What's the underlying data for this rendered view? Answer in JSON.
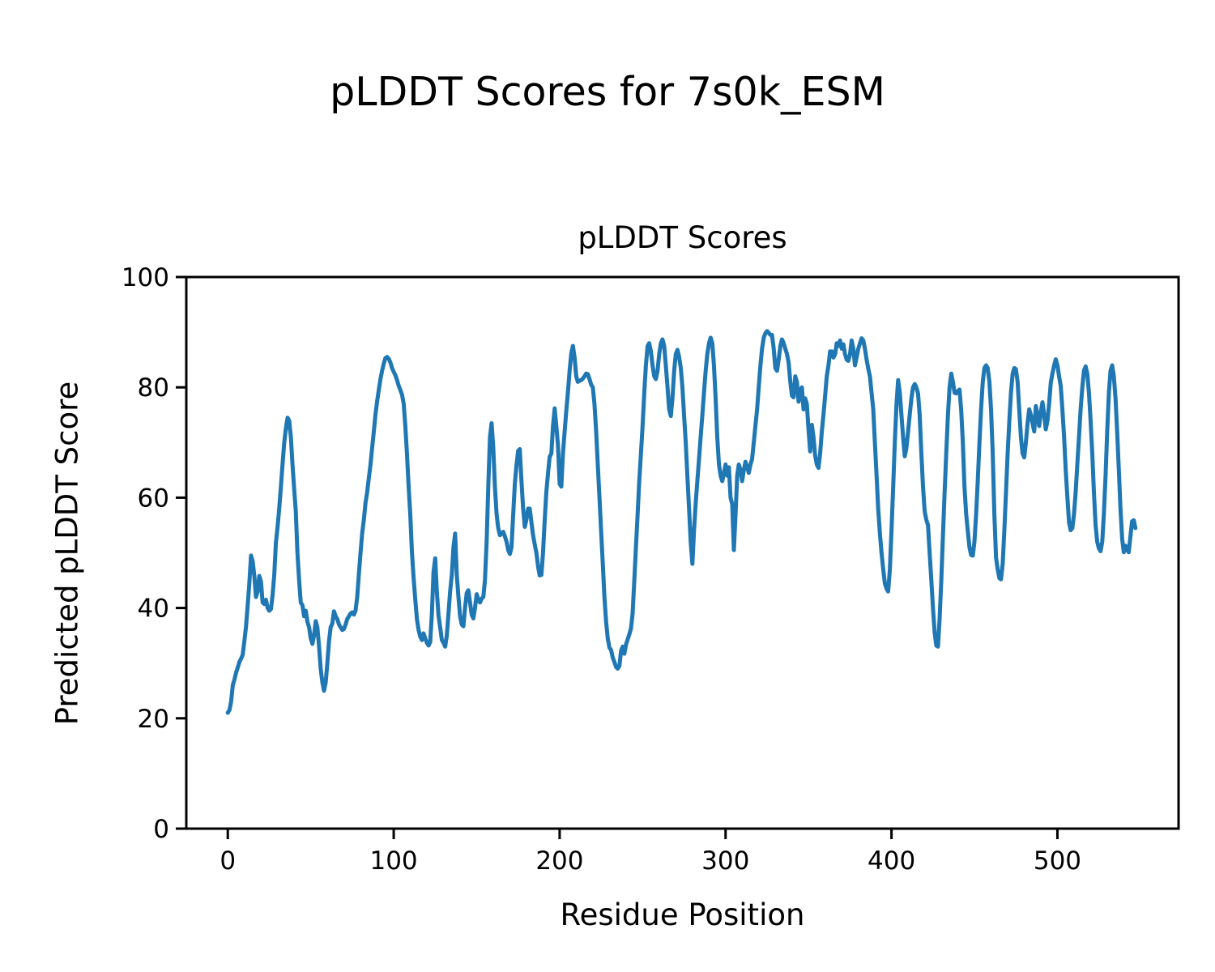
{
  "figure": {
    "suptitle": "pLDDT Scores for 7s0k_ESM",
    "background_color": "#ffffff",
    "text_color": "#000000"
  },
  "chart_data": {
    "type": "line",
    "title": "pLDDT Scores",
    "xlabel": "Residue Position",
    "ylabel": "Predicted pLDDT Score",
    "x_ticks": [
      0,
      100,
      200,
      300,
      400,
      500
    ],
    "y_ticks": [
      0,
      20,
      40,
      60,
      80,
      100
    ],
    "xlim": [
      -25,
      573
    ],
    "ylim": [
      0,
      100
    ],
    "grid": false,
    "legend_position": "none",
    "line_color": "#1f77b4",
    "axis_color": "#000000",
    "series": [
      {
        "name": "pLDDT",
        "x_start": 0,
        "x_step": 1,
        "values": [
          21,
          21.5,
          23,
          26,
          27,
          28.3,
          29.2,
          30.2,
          30.8,
          31.5,
          34,
          36.6,
          40.5,
          44.4,
          49.5,
          48.5,
          45.8,
          42,
          43,
          45.8,
          44.8,
          41,
          40.7,
          41.5,
          40,
          39.5,
          39.8,
          42.3,
          46,
          51.8,
          54.7,
          58,
          62,
          66,
          70,
          72.5,
          74.5,
          74,
          71,
          66,
          61.5,
          57.5,
          50,
          45,
          41,
          40.5,
          38.5,
          39.5,
          37.5,
          36.5,
          34.5,
          33.5,
          35,
          37.6,
          36.5,
          33,
          29,
          26.5,
          25,
          26.5,
          30,
          34,
          36.5,
          37.2,
          39.4,
          38.5,
          38,
          37,
          36.5,
          36,
          36.2,
          37,
          38,
          38.5,
          39,
          39.2,
          38.8,
          39.5,
          42,
          46,
          50,
          53.5,
          56,
          59,
          61,
          63.5,
          66,
          69,
          72,
          75,
          77.5,
          79.5,
          81.5,
          83,
          84.3,
          85.3,
          85.5,
          85.2,
          84.5,
          83.5,
          82.8,
          82.2,
          81.3,
          80.3,
          79.5,
          78.7,
          77,
          73,
          68,
          62,
          57,
          50,
          45.5,
          41.5,
          38,
          36,
          34.8,
          34.2,
          35.4,
          34.5,
          33.7,
          33.2,
          33.8,
          39,
          46.5,
          49,
          43,
          38.6,
          36.5,
          34.2,
          33.7,
          33,
          35,
          39,
          43,
          46,
          51,
          53.5,
          46,
          42,
          38.5,
          37,
          36.7,
          40,
          42.7,
          43.2,
          41,
          38.8,
          38.1,
          40,
          42.5,
          41.5,
          41,
          41.7,
          42,
          45,
          52,
          62,
          71,
          73.5,
          69,
          62,
          57,
          54.5,
          53.2,
          53.5,
          53.8,
          53,
          52,
          50.5,
          49.8,
          51,
          57,
          62.5,
          66,
          68.5,
          68.8,
          63,
          58.1,
          54.7,
          56,
          58,
          58,
          55.5,
          53.2,
          51.5,
          50,
          47.5,
          45.9,
          46,
          50,
          56,
          61,
          64.5,
          67.4,
          68,
          73,
          76.2,
          73,
          69.4,
          62.5,
          62,
          68,
          72,
          75.7,
          79.2,
          83,
          86.2,
          87.5,
          85.5,
          82,
          81,
          81.2,
          81.3,
          81.6,
          82,
          82.5,
          82.4,
          81.5,
          80.5,
          80,
          77,
          72,
          66,
          60,
          54,
          48,
          42,
          37.5,
          34.5,
          32.8,
          32.4,
          31,
          30.2,
          29.3,
          29,
          29.5,
          32.2,
          33,
          31.7,
          33.4,
          34.3,
          35.2,
          36.3,
          39,
          45,
          51,
          57,
          63,
          68,
          73,
          79,
          84,
          87.5,
          88,
          86.5,
          84,
          82,
          81.5,
          83,
          86,
          88,
          88.7,
          87.5,
          84,
          80,
          76,
          74.8,
          78,
          83,
          86,
          86.8,
          85.5,
          83.5,
          80,
          75,
          70,
          64,
          58,
          52,
          48,
          54,
          59,
          63,
          67,
          71,
          75,
          79,
          83,
          86,
          88,
          89,
          88,
          84,
          78,
          71,
          66,
          64,
          63,
          64.5,
          66,
          64,
          65.5,
          60,
          58.8,
          50.5,
          57,
          64,
          66,
          65,
          63,
          65,
          66.5,
          65.5,
          64.5,
          66,
          67,
          70,
          73,
          76,
          80,
          84,
          87,
          89,
          89.8,
          90.2,
          89.9,
          89.5,
          89.5,
          87,
          83.5,
          83,
          85,
          87.5,
          88.7,
          88,
          87,
          86,
          84.5,
          81,
          78.5,
          78.2,
          82,
          81,
          77.4,
          79.5,
          80,
          76,
          78,
          77,
          72.3,
          68.4,
          73.2,
          71,
          67.6,
          66,
          65.4,
          68,
          72,
          75,
          78.5,
          82,
          84,
          86.5,
          86.5,
          85.4,
          86,
          88,
          87.5,
          88.5,
          87,
          87.8,
          86,
          85,
          84.8,
          86,
          88.5,
          87,
          84,
          85.5,
          87,
          88,
          88.9,
          88.5,
          87,
          85,
          83.4,
          82,
          79,
          76,
          70,
          64,
          58,
          53.5,
          50,
          47,
          44.5,
          43.5,
          43,
          47,
          54,
          62,
          70,
          77,
          81.3,
          79,
          75,
          71,
          67.5,
          69,
          72,
          75,
          78,
          80,
          80.6,
          80,
          78.9,
          75,
          68,
          62,
          57.5,
          56,
          55,
          50,
          45,
          40,
          35.5,
          33.2,
          33,
          38,
          45,
          53,
          61,
          68,
          75,
          80,
          82.5,
          81,
          79,
          78.9,
          79.3,
          79.6,
          76,
          70,
          62,
          57,
          54,
          51,
          49.6,
          49.5,
          52,
          57,
          63,
          70,
          76,
          81,
          83.5,
          84,
          83.5,
          81,
          76,
          68,
          57,
          49.1,
          47,
          45.4,
          45.2,
          48,
          54,
          61,
          68,
          74,
          79,
          82.5,
          83.5,
          83.3,
          81,
          76,
          71,
          68,
          67.3,
          70,
          73.5,
          76,
          75,
          73.5,
          72,
          76.6,
          75,
          73,
          75.5,
          77.3,
          75,
          72.4,
          74,
          77,
          80.9,
          82.5,
          84,
          85.1,
          84,
          82,
          80.2,
          76,
          71,
          65,
          60,
          55.5,
          54.1,
          54.5,
          57,
          61,
          66,
          71,
          76,
          80,
          83,
          83.8,
          82.5,
          79,
          74,
          68,
          61,
          55,
          52,
          50.8,
          50.3,
          52,
          57,
          64,
          72,
          79,
          83,
          84,
          82,
          78,
          72,
          65,
          58,
          52.5,
          50.1,
          51.3,
          50.5,
          50.1,
          53,
          55.7,
          55.9,
          54.5
        ]
      }
    ]
  }
}
